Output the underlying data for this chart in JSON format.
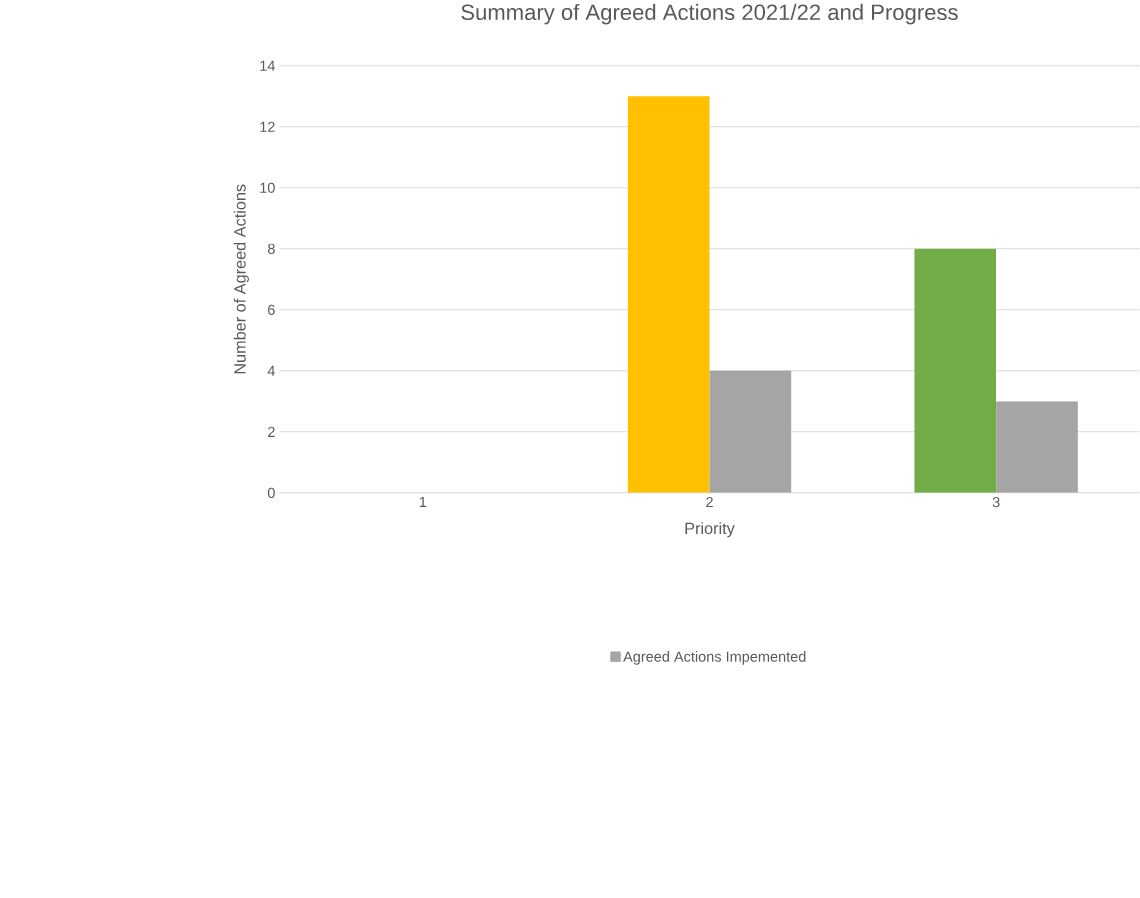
{
  "chart_data": {
    "type": "bar",
    "title": "Summary of Agreed Actions 2021/22 and Progress",
    "xlabel": "Priority",
    "ylabel": "Number of Agreed Actions",
    "categories": [
      "1",
      "2",
      "3"
    ],
    "series": [
      {
        "colors": [
          null,
          "#ffc000",
          "#70ad47"
        ],
        "values": [
          null,
          13,
          8
        ]
      },
      {
        "name": "Agreed Actions Impemented",
        "color": "#a5a5a5",
        "values": [
          null,
          4,
          3
        ]
      }
    ],
    "ylim": [
      0,
      14
    ],
    "yticks": [
      0,
      2,
      4,
      6,
      8,
      10,
      12,
      14
    ],
    "grid": "y",
    "legend": "bottom"
  }
}
